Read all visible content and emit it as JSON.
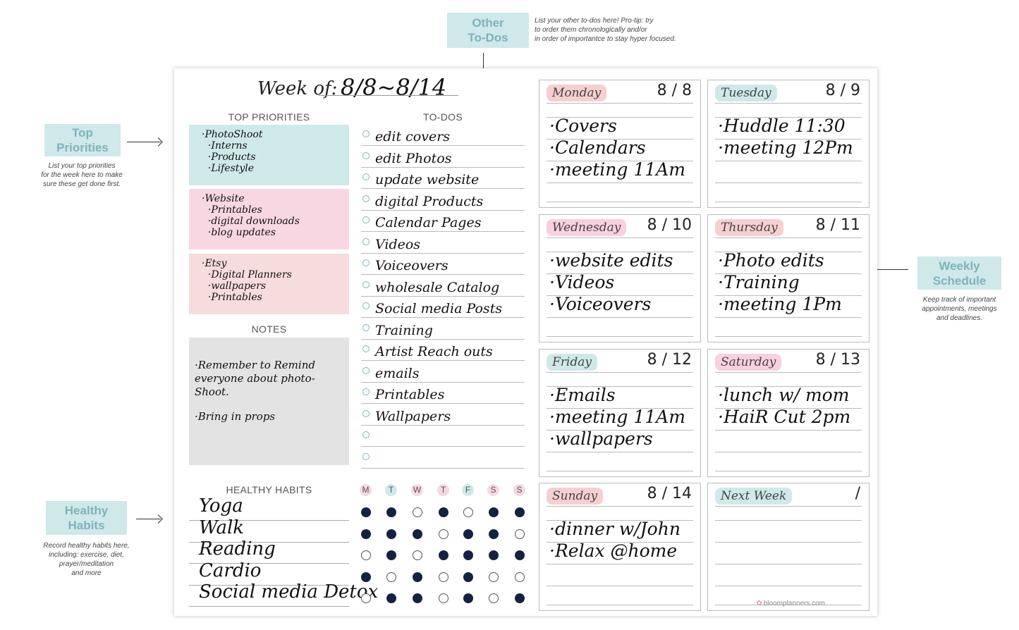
{
  "callouts": {
    "other_todos": {
      "title": "Other\nTo-Dos",
      "note": "List your other to-dos here! Pro-tip: try\nto order them chronologically and/or\nin order of importantce to stay hyper focused."
    },
    "top_priorities": {
      "title": "Top\nPriorities",
      "note": "List your top priorities\nfor the week here to make\nsure these get done first."
    },
    "weekly_schedule": {
      "title": "Weekly\nSchedule",
      "note": "Keep track of important\nappointments, meetings\nand deadlines."
    },
    "healthy_habits": {
      "title": "Healthy\nHabits",
      "note": "Record healthy habits here,\nincluding: exercise, diet,\nprayer/meditation\nand more"
    }
  },
  "week": {
    "label": "Week of:",
    "value": "8/8~8/14"
  },
  "sections": {
    "priorities": "TOP PRIORITIES",
    "todos": "TO-DOS",
    "notes": "NOTES",
    "habits": "HEALTHY HABITS"
  },
  "priorities": [
    {
      "color": "#cfe9e9",
      "lines": [
        "·PhotoShoot",
        "  ·Interns",
        "  ·Products",
        "  ·Lifestyle"
      ]
    },
    {
      "color": "#f8d7e3",
      "lines": [
        "·Website",
        "  ·Printables",
        "  ·digital downloads",
        "  ·blog updates"
      ]
    },
    {
      "color": "#f6dcdc",
      "lines": [
        "·Etsy",
        "  ·Digital Planners",
        "  ·wallpapers",
        "  ·Printables"
      ]
    }
  ],
  "todos": [
    "edit covers",
    "edit Photos",
    "update website",
    "digital Products",
    "Calendar Pages",
    "Videos",
    "Voiceovers",
    "wholesale Catalog",
    "Social media Posts",
    "Training",
    "Artist Reach outs",
    "emails",
    "Printables",
    "Wallpapers",
    "",
    ""
  ],
  "notes": [
    "·Remember to Remind\neveryone about photo-\nShoot.",
    "·Bring in props"
  ],
  "habits": {
    "days": [
      "M",
      "T",
      "W",
      "T",
      "F",
      "S",
      "S"
    ],
    "day_colors": [
      "#f8d7e3",
      "#cfe9e9",
      "#f8d7e3",
      "#f8d7e3",
      "#cfe9e9",
      "#f8d7e3",
      "#f8d7e3"
    ],
    "items": [
      {
        "name": "Yoga",
        "done": [
          true,
          true,
          false,
          true,
          false,
          true,
          true
        ]
      },
      {
        "name": "Walk",
        "done": [
          true,
          true,
          true,
          false,
          true,
          true,
          false
        ]
      },
      {
        "name": "Reading",
        "done": [
          false,
          true,
          false,
          true,
          true,
          true,
          true
        ]
      },
      {
        "name": "Cardio",
        "done": [
          true,
          false,
          true,
          false,
          true,
          false,
          false
        ]
      },
      {
        "name": "Social media Detox",
        "done": [
          false,
          true,
          true,
          false,
          true,
          false,
          true
        ]
      }
    ]
  },
  "days": [
    {
      "name": "Monday",
      "date": "8 / 8",
      "color": "#f6cfcf",
      "entries": [
        "·Covers",
        "·Calendars",
        "·meeting 11Am"
      ]
    },
    {
      "name": "Tuesday",
      "date": "8 / 9",
      "color": "#cfe9e9",
      "entries": [
        "·Huddle 11:30",
        "·meeting 12Pm"
      ]
    },
    {
      "name": "Wednesday",
      "date": "8 / 10",
      "color": "#f8d0e0",
      "entries": [
        "·website edits",
        "·Videos",
        "·Voiceovers"
      ]
    },
    {
      "name": "Thursday",
      "date": "8 / 11",
      "color": "#f6cfcf",
      "entries": [
        "·Photo edits",
        "·Training",
        "·meeting 1Pm"
      ]
    },
    {
      "name": "Friday",
      "date": "8 / 12",
      "color": "#cfe9e9",
      "entries": [
        "·Emails",
        "·meeting 11Am",
        "·wallpapers"
      ]
    },
    {
      "name": "Saturday",
      "date": "8 / 13",
      "color": "#f8d0e0",
      "entries": [
        "·lunch w/ mom",
        "·HaiR Cut 2pm"
      ]
    },
    {
      "name": "Sunday",
      "date": "8 / 14",
      "color": "#f6cfcf",
      "entries": [
        "·dinner w/John",
        "·Relax @home"
      ]
    },
    {
      "name": "Next Week",
      "date": "/",
      "color": "#cfe9e9",
      "entries": []
    }
  ],
  "brand": "bloomplanners.com",
  "brand_icon": "flower-icon"
}
